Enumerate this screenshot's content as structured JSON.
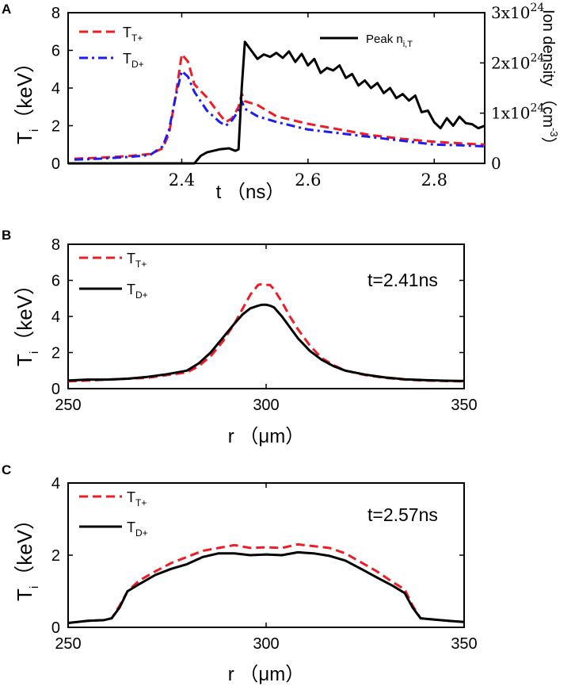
{
  "chart_data": [
    {
      "type": "line",
      "panel_label": "A",
      "xlabel": "t （ns）",
      "ylabel_main": "T",
      "ylabel_sub": "i",
      "ylabel_unit": "（keV）",
      "ylabel_right": "Ion density （cm",
      "ylabel_right_sup": "-3",
      "ylabel_right_close": "）",
      "xlim": [
        2.22,
        2.88
      ],
      "ylim": [
        0,
        8
      ],
      "ylim_right": [
        0,
        3e+24
      ],
      "xticks": [
        2.4,
        2.6,
        2.8
      ],
      "xtick_labels": [
        "2.4",
        "2.6",
        "2.8"
      ],
      "yticks": [
        0,
        2,
        4,
        6,
        8
      ],
      "ytick_labels": [
        "0",
        "2",
        "4",
        "6",
        "8"
      ],
      "yticks_right": [
        0,
        1e+24,
        2e+24,
        3e+24
      ],
      "ytick_labels_right": [
        {
          "base": "0",
          "exp": ""
        },
        {
          "base": "1x10",
          "exp": "24"
        },
        {
          "base": "2x10",
          "exp": "24"
        },
        {
          "base": "3x10",
          "exp": "24"
        }
      ],
      "series": [
        {
          "name": "T",
          "name_sub": "T+",
          "color": "#ee1c25",
          "style": "dash",
          "axis": "left",
          "x": [
            2.23,
            2.27,
            2.32,
            2.35,
            2.37,
            2.38,
            2.39,
            2.4,
            2.41,
            2.42,
            2.44,
            2.46,
            2.47,
            2.48,
            2.49,
            2.495,
            2.5,
            2.52,
            2.55,
            2.6,
            2.65,
            2.7,
            2.75,
            2.8,
            2.85,
            2.88
          ],
          "values": [
            0.25,
            0.3,
            0.4,
            0.5,
            0.8,
            1.6,
            3.5,
            5.8,
            5.4,
            4.2,
            3.5,
            2.6,
            2.2,
            2.4,
            3.0,
            3.7,
            3.3,
            3.1,
            2.5,
            2.1,
            1.8,
            1.5,
            1.3,
            1.15,
            1.05,
            1.0
          ]
        },
        {
          "name": "T",
          "name_sub": "D+",
          "color": "#1c1cf0",
          "style": "dashdot",
          "axis": "left",
          "x": [
            2.23,
            2.27,
            2.32,
            2.35,
            2.37,
            2.38,
            2.39,
            2.4,
            2.41,
            2.42,
            2.44,
            2.46,
            2.47,
            2.48,
            2.49,
            2.495,
            2.5,
            2.52,
            2.55,
            2.6,
            2.65,
            2.7,
            2.75,
            2.8,
            2.85,
            2.88
          ],
          "values": [
            0.2,
            0.25,
            0.35,
            0.45,
            0.9,
            1.8,
            3.5,
            4.9,
            4.6,
            3.8,
            2.8,
            2.2,
            2.0,
            2.3,
            2.8,
            3.3,
            2.9,
            2.5,
            2.2,
            1.8,
            1.6,
            1.4,
            1.2,
            1.0,
            0.95,
            0.9
          ]
        },
        {
          "name": "Peak  n",
          "name_sub": "i,T",
          "color": "#000000",
          "style": "solid",
          "axis": "right",
          "x": [
            2.22,
            2.42,
            2.43,
            2.44,
            2.46,
            2.475,
            2.485,
            2.49,
            2.495,
            2.5,
            2.51,
            2.52,
            2.53,
            2.54,
            2.55,
            2.56,
            2.57,
            2.58,
            2.59,
            2.6,
            2.61,
            2.62,
            2.63,
            2.64,
            2.65,
            2.66,
            2.67,
            2.68,
            2.69,
            2.7,
            2.71,
            2.72,
            2.73,
            2.74,
            2.75,
            2.76,
            2.77,
            2.78,
            2.79,
            2.8,
            2.81,
            2.82,
            2.83,
            2.84,
            2.85,
            2.86,
            2.87,
            2.88
          ],
          "values": [
            0,
            0,
            1.5e+23,
            2.2e+23,
            2.8e+23,
            3e+23,
            2.5e+23,
            2.8e+23,
            1.5e+24,
            2.42e+24,
            2.25e+24,
            2.08e+24,
            2.17e+24,
            2.12e+24,
            2.2e+24,
            2.1e+24,
            2.23e+24,
            2.02e+24,
            2.18e+24,
            1.95e+24,
            2.08e+24,
            1.8e+24,
            1.9e+24,
            1.85e+24,
            1.95e+24,
            1.7e+24,
            1.78e+24,
            1.55e+24,
            1.65e+24,
            1.5e+24,
            1.6e+24,
            1.4e+24,
            1.5e+24,
            1.3e+24,
            1.38e+24,
            1.25e+24,
            1.35e+24,
            1.02e+24,
            1.05e+24,
            8.2e+23,
            7e+23,
            9e+23,
            7.5e+23,
            9.3e+23,
            8e+23,
            7.8e+23,
            7e+23,
            7.5e+23
          ]
        }
      ]
    },
    {
      "type": "line",
      "panel_label": "B",
      "annotation": "t=2.41ns",
      "xlabel": "r （μm）",
      "ylabel_main": "T",
      "ylabel_sub": "i",
      "ylabel_unit": "（keV）",
      "xlim": [
        250,
        350
      ],
      "ylim": [
        0,
        8
      ],
      "xticks": [
        250,
        300,
        350
      ],
      "xtick_labels": [
        "250",
        "300",
        "350"
      ],
      "yticks": [
        0,
        2,
        4,
        6,
        8
      ],
      "ytick_labels": [
        "0",
        "2",
        "4",
        "6",
        "8"
      ],
      "series": [
        {
          "name": "T",
          "name_sub": "T+",
          "color": "#ee1c25",
          "style": "dash",
          "x": [
            250,
            255,
            260,
            265,
            270,
            275,
            280,
            283,
            286,
            289,
            292,
            294,
            296,
            298,
            299,
            300,
            301,
            302,
            304,
            306,
            308,
            311,
            314,
            317,
            320,
            325,
            330,
            335,
            340,
            345,
            350
          ],
          "values": [
            0.4,
            0.45,
            0.5,
            0.55,
            0.6,
            0.75,
            0.9,
            1.25,
            1.8,
            2.6,
            3.6,
            4.4,
            5.2,
            5.75,
            5.8,
            5.75,
            5.75,
            5.5,
            4.8,
            4.0,
            3.3,
            2.4,
            1.7,
            1.3,
            1.0,
            0.75,
            0.6,
            0.5,
            0.45,
            0.42,
            0.4
          ]
        },
        {
          "name": "T",
          "name_sub": "D+",
          "color": "#000000",
          "style": "solid",
          "x": [
            250,
            255,
            260,
            265,
            270,
            275,
            280,
            283,
            286,
            289,
            292,
            294,
            296,
            298,
            299,
            300,
            301,
            302,
            304,
            306,
            308,
            311,
            314,
            317,
            320,
            325,
            330,
            335,
            340,
            345,
            350
          ],
          "values": [
            0.45,
            0.5,
            0.5,
            0.55,
            0.65,
            0.8,
            1.0,
            1.4,
            2.0,
            2.8,
            3.6,
            4.1,
            4.45,
            4.6,
            4.65,
            4.65,
            4.6,
            4.5,
            4.0,
            3.4,
            2.8,
            2.1,
            1.6,
            1.25,
            1.0,
            0.78,
            0.62,
            0.52,
            0.47,
            0.44,
            0.42
          ]
        }
      ]
    },
    {
      "type": "line",
      "panel_label": "C",
      "annotation": "t=2.57ns",
      "xlabel": "r （μm）",
      "ylabel_main": "T",
      "ylabel_sub": "i",
      "ylabel_unit": "（keV）",
      "xlim": [
        250,
        350
      ],
      "ylim": [
        0,
        4
      ],
      "xticks": [
        250,
        300,
        350
      ],
      "xtick_labels": [
        "250",
        "300",
        "350"
      ],
      "yticks": [
        0,
        2,
        4
      ],
      "ytick_labels": [
        "0",
        "2",
        "4"
      ],
      "series": [
        {
          "name": "T",
          "name_sub": "T+",
          "color": "#ee1c25",
          "style": "dash",
          "x": [
            250,
            255,
            259,
            261,
            263,
            265,
            268,
            272,
            276,
            280,
            284,
            288,
            292,
            296,
            300,
            304,
            308,
            312,
            316,
            320,
            324,
            328,
            332,
            335,
            337,
            339,
            342,
            346,
            350
          ],
          "values": [
            0.12,
            0.18,
            0.2,
            0.25,
            0.6,
            1.0,
            1.3,
            1.55,
            1.78,
            1.95,
            2.12,
            2.2,
            2.28,
            2.2,
            2.22,
            2.2,
            2.3,
            2.25,
            2.2,
            2.05,
            1.8,
            1.55,
            1.25,
            1.05,
            0.6,
            0.25,
            0.22,
            0.18,
            0.15
          ]
        },
        {
          "name": "T",
          "name_sub": "D+",
          "color": "#000000",
          "style": "solid",
          "x": [
            250,
            255,
            259,
            261,
            263,
            265,
            268,
            272,
            276,
            280,
            284,
            288,
            292,
            296,
            300,
            304,
            308,
            312,
            316,
            320,
            324,
            328,
            332,
            335,
            337,
            339,
            342,
            346,
            350
          ],
          "values": [
            0.12,
            0.18,
            0.2,
            0.25,
            0.55,
            1.0,
            1.2,
            1.45,
            1.62,
            1.75,
            1.95,
            2.05,
            2.05,
            2.0,
            2.02,
            2.0,
            2.08,
            2.05,
            1.98,
            1.85,
            1.62,
            1.38,
            1.15,
            0.95,
            0.55,
            0.25,
            0.22,
            0.18,
            0.15
          ]
        }
      ]
    }
  ]
}
